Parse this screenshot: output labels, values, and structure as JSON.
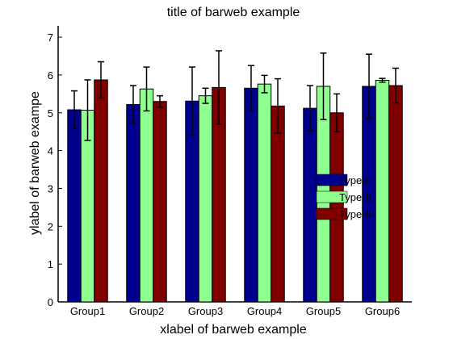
{
  "chart_data": {
    "type": "bar",
    "title": "title of barweb example",
    "xlabel": "xlabel of barweb example",
    "ylabel": "ylabel of barweb exampe",
    "ylim": [
      0,
      7.3
    ],
    "yticks": [
      0,
      1,
      2,
      3,
      4,
      5,
      6,
      7
    ],
    "categories": [
      "Group1",
      "Group2",
      "Group3",
      "Group4",
      "Group5",
      "Group6"
    ],
    "series": [
      {
        "name": "Type-I",
        "color": "#00008f",
        "values": [
          5.08,
          5.22,
          5.31,
          5.65,
          5.12,
          5.7
        ],
        "errors": [
          0.5,
          0.5,
          0.9,
          0.6,
          0.6,
          0.85
        ]
      },
      {
        "name": "Type-II",
        "color": "#8fff8f",
        "values": [
          5.07,
          5.63,
          5.45,
          5.76,
          5.7,
          5.86
        ],
        "errors": [
          0.8,
          0.58,
          0.2,
          0.23,
          0.88,
          0.05
        ]
      },
      {
        "name": "Type-III",
        "color": "#800000",
        "values": [
          5.87,
          5.3,
          5.67,
          5.18,
          5.0,
          5.72
        ],
        "errors": [
          0.48,
          0.15,
          0.97,
          0.72,
          0.5,
          0.46
        ]
      }
    ],
    "grid": false,
    "legend_position": "center-right"
  }
}
